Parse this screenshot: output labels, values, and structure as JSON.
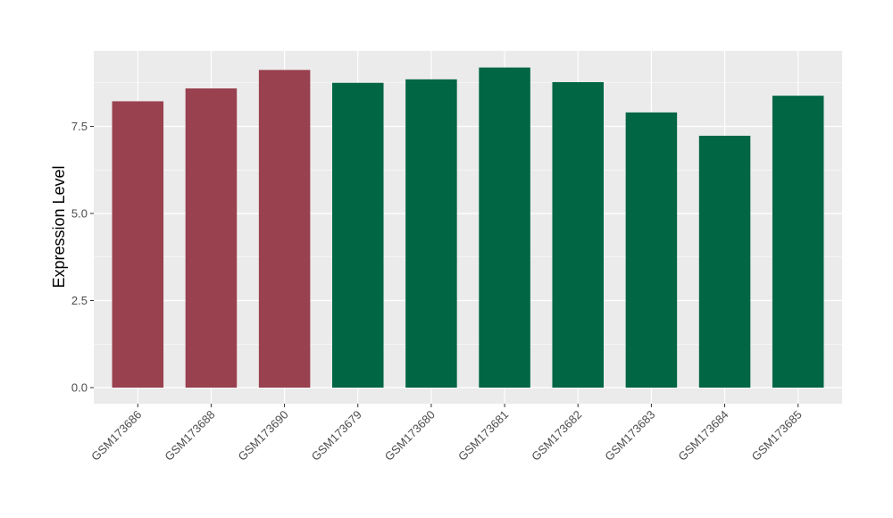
{
  "chart_data": {
    "type": "bar",
    "title": "",
    "xlabel": "",
    "ylabel": "Expression Level",
    "ylim": [
      -0.45,
      9.5
    ],
    "yticks": [
      0.0,
      2.5,
      5.0,
      7.5
    ],
    "ytick_labels": [
      "0.0",
      "2.5",
      "5.0",
      "7.5"
    ],
    "categories": [
      "GSM173686",
      "GSM173688",
      "GSM173690",
      "GSM173679",
      "GSM173680",
      "GSM173681",
      "GSM173682",
      "GSM173683",
      "GSM173684",
      "GSM173685"
    ],
    "values": [
      8.22,
      8.59,
      9.12,
      8.75,
      8.85,
      9.19,
      8.77,
      7.9,
      7.23,
      8.38
    ],
    "bar_colors": [
      "#99414f",
      "#99414f",
      "#99414f",
      "#006644",
      "#006644",
      "#006644",
      "#006644",
      "#006644",
      "#006644",
      "#006644"
    ],
    "panel_background": "#ebebeb",
    "grid": true,
    "legend": "none"
  }
}
